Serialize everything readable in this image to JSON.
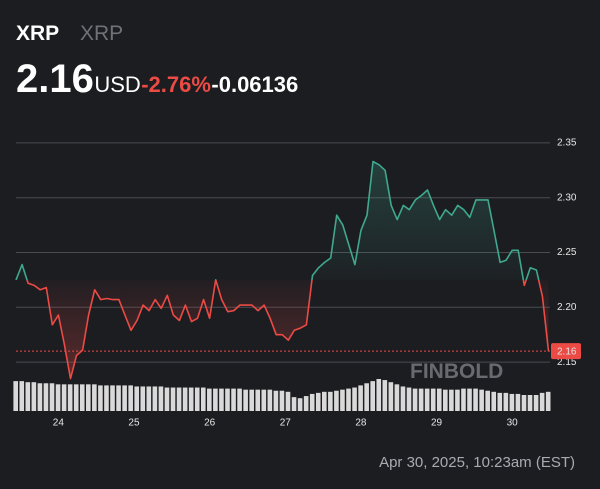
{
  "chart_data": {
    "type": "line",
    "symbol": "XRP",
    "name": "XRP",
    "price": 2.16,
    "currency": "USD",
    "change_percent": "-2.76%",
    "change": "-0.06136",
    "watermark": "FINBOLD",
    "timestamp": "Apr 30, 2025, 10:23am (EST)",
    "up_color": "#3fa88f",
    "down_color": "#ec4a44",
    "grid": true,
    "xlim": [
      23.44,
      30.5
    ],
    "xticks": [
      24,
      25,
      26,
      27,
      28,
      29,
      30
    ],
    "ylim": [
      2.12,
      2.38
    ],
    "yticks": [
      2.15,
      {
        "value": 2.2,
        "label": "2.20"
      },
      2.25,
      {
        "value": 2.3,
        "label": "2.30"
      },
      2.35
    ],
    "x": [
      23.44,
      23.52,
      23.6,
      23.68,
      23.76,
      23.84,
      23.92,
      24,
      24.08,
      24.16,
      24.24,
      24.32,
      24.4,
      24.48,
      24.56,
      24.64,
      24.72,
      24.8,
      24.88,
      24.96,
      25.04,
      25.12,
      25.2,
      25.28,
      25.36,
      25.44,
      25.52,
      25.6,
      25.68,
      25.76,
      25.84,
      25.92,
      26,
      26.08,
      26.16,
      26.24,
      26.32,
      26.4,
      26.48,
      26.56,
      26.64,
      26.72,
      26.8,
      26.88,
      26.96,
      27.04,
      27.12,
      27.2,
      27.28,
      27.36,
      27.44,
      27.52,
      27.6,
      27.68,
      27.76,
      27.84,
      27.92,
      28,
      28.08,
      28.16,
      28.24,
      28.32,
      28.4,
      28.48,
      28.56,
      28.64,
      28.72,
      28.8,
      28.88,
      28.96,
      29.04,
      29.12,
      29.2,
      29.28,
      29.36,
      29.44,
      29.52,
      29.6,
      29.68,
      29.76,
      29.84,
      29.92,
      30,
      30.08,
      30.16,
      30.24,
      30.32,
      30.4,
      30.48
    ],
    "values": [
      2.225,
      2.239,
      2.222,
      2.22,
      2.216,
      2.218,
      2.184,
      2.193,
      2.166,
      2.135,
      2.156,
      2.161,
      2.193,
      2.216,
      2.207,
      2.208,
      2.207,
      2.207,
      2.193,
      2.179,
      2.188,
      2.202,
      2.197,
      2.207,
      2.199,
      2.211,
      2.193,
      2.188,
      2.202,
      2.187,
      2.19,
      2.207,
      2.19,
      2.225,
      2.207,
      2.196,
      2.197,
      2.202,
      2.202,
      2.202,
      2.197,
      2.202,
      2.19,
      2.175,
      2.175,
      2.17,
      2.179,
      2.181,
      2.184,
      2.229,
      2.236,
      2.241,
      2.245,
      2.284,
      2.275,
      2.257,
      2.239,
      2.27,
      2.284,
      2.333,
      2.33,
      2.325,
      2.293,
      2.28,
      2.293,
      2.289,
      2.298,
      2.302,
      2.307,
      2.293,
      2.28,
      2.289,
      2.284,
      2.293,
      2.289,
      2.282,
      2.298,
      2.298,
      2.298,
      2.27,
      2.241,
      2.243,
      2.252,
      2.252,
      2.22,
      2.236,
      2.234,
      2.21,
      2.16
    ],
    "volume": [
      28,
      28,
      27,
      27,
      26,
      26,
      26,
      25,
      25,
      25,
      25,
      25,
      25,
      25,
      24,
      24,
      24,
      24,
      24,
      24,
      23,
      23,
      23,
      23,
      23,
      22,
      22,
      22,
      22,
      22,
      22,
      22,
      21,
      21,
      21,
      21,
      21,
      21,
      20,
      20,
      20,
      20,
      20,
      19,
      19,
      18,
      13,
      12,
      14,
      16,
      17,
      18,
      18,
      19,
      20,
      21,
      22,
      24,
      26,
      28,
      30,
      29,
      27,
      25,
      23,
      22,
      21,
      21,
      21,
      21,
      21,
      20,
      20,
      20,
      21,
      21,
      21,
      20,
      19,
      18,
      17,
      17,
      16,
      16,
      15,
      15,
      15,
      17,
      18
    ]
  }
}
